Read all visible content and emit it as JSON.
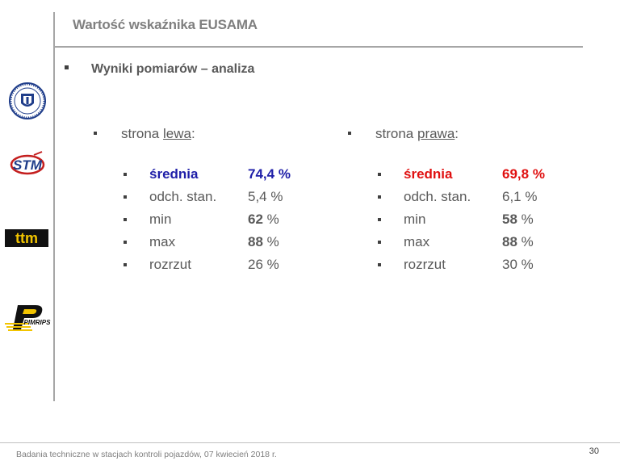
{
  "header": {
    "title": "Wartość wskaźnika EUSAMA"
  },
  "section": {
    "title": "Wyniki pomiarów – analiza"
  },
  "left": {
    "head_pre": "strona ",
    "head_u": "lewa",
    "head_post": ":",
    "rows": [
      {
        "label": "średnia",
        "value": "74,4",
        "unit": " %"
      },
      {
        "label": "odch. stan.",
        "value": "",
        "unit": "5,4 %"
      },
      {
        "label": "min",
        "value": "62",
        "unit": " %"
      },
      {
        "label": "max",
        "value": "88",
        "unit": " %"
      },
      {
        "label": "rozrzut",
        "value": "",
        "unit": "26 %"
      }
    ]
  },
  "right": {
    "head_pre": "strona ",
    "head_u": "prawa",
    "head_post": ":",
    "rows": [
      {
        "label": "średnia",
        "value": "69,8",
        "unit": " %"
      },
      {
        "label": "odch. stan.",
        "value": "",
        "unit": "6,1 %"
      },
      {
        "label": "min",
        "value": "58",
        "unit": " %"
      },
      {
        "label": "max",
        "value": "88",
        "unit": " %"
      },
      {
        "label": "rozrzut",
        "value": "",
        "unit": "30 %"
      }
    ]
  },
  "logos": {
    "ttm": "ttm",
    "stm": "STM",
    "pimrips": "PIMRIPS"
  },
  "colors": {
    "left_highlight": "#1f1fa8",
    "right_highlight": "#e01010"
  },
  "footer": {
    "text": "Badania techniczne w stacjach kontroli pojazdów, 07 kwiecień 2018 r.",
    "page": "30"
  }
}
